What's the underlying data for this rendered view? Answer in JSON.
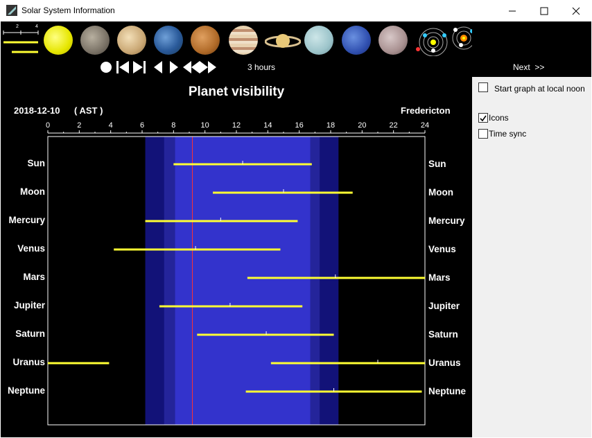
{
  "window": {
    "title": "Solar System Information",
    "minimize_icon": "minimize-icon",
    "maximize_icon": "maximize-icon",
    "close_icon": "close-icon"
  },
  "toolbar": {
    "scale_ticks": [
      "2",
      "4"
    ],
    "planet_icons": [
      "sun-icon",
      "mercury-icon",
      "venus-icon",
      "earth-icon",
      "mars-icon",
      "jupiter-icon",
      "saturn-icon",
      "uranus-icon",
      "neptune-icon",
      "pluto-icon",
      "inner-orbits-icon",
      "outer-orbits-icon"
    ],
    "playback_icons": [
      "record-icon",
      "skip-start-icon",
      "skip-end-icon",
      "step-back-icon",
      "step-forward-icon",
      "fast-back-icon",
      "fast-forward-icon"
    ],
    "time_step": "3 hours",
    "next_label": "Next  >>"
  },
  "chart_data": {
    "type": "bar",
    "title": "Planet visibility",
    "date": "2018-12-10",
    "timezone": "( AST )",
    "location": "Fredericton",
    "xlim": [
      0,
      24
    ],
    "x_ticks": [
      "0",
      "2",
      "4",
      "6",
      "8",
      "10",
      "12",
      "14",
      "16",
      "18",
      "20",
      "22",
      "24"
    ],
    "current_time": 9.2,
    "daylight_bands": [
      {
        "start": 6.2,
        "end": 18.5,
        "level": "astronomical twilight"
      },
      {
        "start": 7.4,
        "end": 17.3,
        "level": "nautical twilight"
      },
      {
        "start": 8.1,
        "end": 16.7,
        "level": "civil twilight / day"
      }
    ],
    "series": [
      {
        "name": "Sun",
        "segments": [
          [
            8.0,
            16.8
          ]
        ],
        "transit": 12.4
      },
      {
        "name": "Moon",
        "segments": [
          [
            10.5,
            19.4
          ]
        ],
        "transit": 15.0
      },
      {
        "name": "Mercury",
        "segments": [
          [
            6.2,
            15.9
          ]
        ],
        "transit": 11.0
      },
      {
        "name": "Venus",
        "segments": [
          [
            4.2,
            14.8
          ]
        ],
        "transit": 9.4
      },
      {
        "name": "Mars",
        "segments": [
          [
            12.7,
            24.0
          ]
        ],
        "transit": 18.3
      },
      {
        "name": "Jupiter",
        "segments": [
          [
            7.1,
            16.2
          ]
        ],
        "transit": 11.6
      },
      {
        "name": "Saturn",
        "segments": [
          [
            9.5,
            18.2
          ]
        ],
        "transit": 13.9
      },
      {
        "name": "Uranus",
        "segments": [
          [
            0.0,
            3.9
          ],
          [
            14.2,
            24.0
          ]
        ],
        "transit": 21.0
      },
      {
        "name": "Neptune",
        "segments": [
          [
            12.6,
            23.8
          ]
        ],
        "transit": 18.2
      }
    ],
    "colors": {
      "bar": "#ffff33",
      "marker": "#ff3333",
      "day": "#3333cc",
      "twilight1": "#2a2a99",
      "twilight2": "#15157a",
      "night": "#000000"
    }
  },
  "sidepanel": {
    "noon_label": "Start graph at local noon",
    "icons_label": "Icons",
    "icons_checked": true,
    "timesync_label": "Time sync",
    "timesync_checked": false
  }
}
